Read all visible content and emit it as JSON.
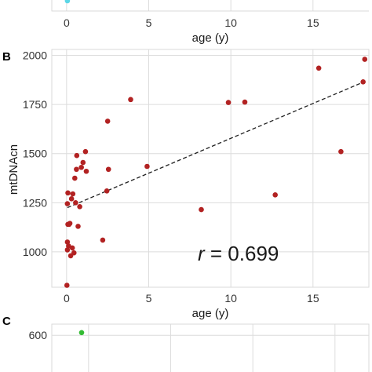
{
  "colors": {
    "panel_a_point": "#5bd6e6",
    "panel_b_point": "#b22222",
    "panel_c_point": "#33bb33",
    "grid": "#dcdcdc",
    "frame": "#d9d9d9",
    "fit": "#222222"
  },
  "chart_data": [
    {
      "panel": "",
      "type": "scatter",
      "xlabel": "age (y)",
      "ylabel": "",
      "x_ticks": [
        0,
        5,
        10,
        15
      ],
      "xlim": [
        -0.9,
        18.4
      ],
      "grid": true,
      "points": [
        {
          "x": 0.05
        }
      ]
    },
    {
      "panel": "B",
      "type": "scatter",
      "xlabel": "age (y)",
      "ylabel": "mtDNAcn",
      "x_ticks": [
        0,
        5,
        10,
        15
      ],
      "y_ticks": [
        1000,
        1250,
        1500,
        1750,
        2000
      ],
      "xlim": [
        -0.9,
        18.4
      ],
      "ylim": [
        820,
        2030
      ],
      "grid": true,
      "annotation": {
        "symbol": "r",
        "text": " = 0.699"
      },
      "trendline": {
        "style": "dashed",
        "x": [
          0.05,
          18.1
        ],
        "y": [
          1225,
          1865
        ]
      },
      "points": [
        {
          "x": 0.02,
          "y": 830
        },
        {
          "x": 0.05,
          "y": 1010
        },
        {
          "x": 0.05,
          "y": 1050
        },
        {
          "x": 0.08,
          "y": 1140
        },
        {
          "x": 0.05,
          "y": 1245
        },
        {
          "x": 0.08,
          "y": 1300
        },
        {
          "x": 0.12,
          "y": 1030
        },
        {
          "x": 0.15,
          "y": 1140
        },
        {
          "x": 0.2,
          "y": 1145
        },
        {
          "x": 0.25,
          "y": 980
        },
        {
          "x": 0.3,
          "y": 1270
        },
        {
          "x": 0.38,
          "y": 1295
        },
        {
          "x": 0.35,
          "y": 1020
        },
        {
          "x": 0.45,
          "y": 995
        },
        {
          "x": 0.5,
          "y": 1375
        },
        {
          "x": 0.55,
          "y": 1250
        },
        {
          "x": 0.6,
          "y": 1420
        },
        {
          "x": 0.62,
          "y": 1490
        },
        {
          "x": 0.7,
          "y": 1130
        },
        {
          "x": 0.8,
          "y": 1230
        },
        {
          "x": 0.9,
          "y": 1430
        },
        {
          "x": 1.0,
          "y": 1455
        },
        {
          "x": 1.15,
          "y": 1510
        },
        {
          "x": 1.2,
          "y": 1410
        },
        {
          "x": 2.2,
          "y": 1060
        },
        {
          "x": 2.45,
          "y": 1310
        },
        {
          "x": 2.55,
          "y": 1420
        },
        {
          "x": 2.5,
          "y": 1665
        },
        {
          "x": 3.9,
          "y": 1775
        },
        {
          "x": 4.9,
          "y": 1435
        },
        {
          "x": 8.2,
          "y": 1215
        },
        {
          "x": 9.85,
          "y": 1760
        },
        {
          "x": 10.85,
          "y": 1762
        },
        {
          "x": 12.7,
          "y": 1290
        },
        {
          "x": 15.35,
          "y": 1935
        },
        {
          "x": 16.7,
          "y": 1510
        },
        {
          "x": 18.05,
          "y": 1865
        },
        {
          "x": 18.15,
          "y": 1980
        }
      ]
    },
    {
      "panel": "C",
      "type": "scatter",
      "xlabel": "",
      "ylabel": "",
      "y_ticks": [
        600
      ],
      "ylim": [
        400,
        650
      ],
      "grid": true,
      "points": [
        {
          "x": 0.9,
          "y": 612
        }
      ]
    }
  ]
}
